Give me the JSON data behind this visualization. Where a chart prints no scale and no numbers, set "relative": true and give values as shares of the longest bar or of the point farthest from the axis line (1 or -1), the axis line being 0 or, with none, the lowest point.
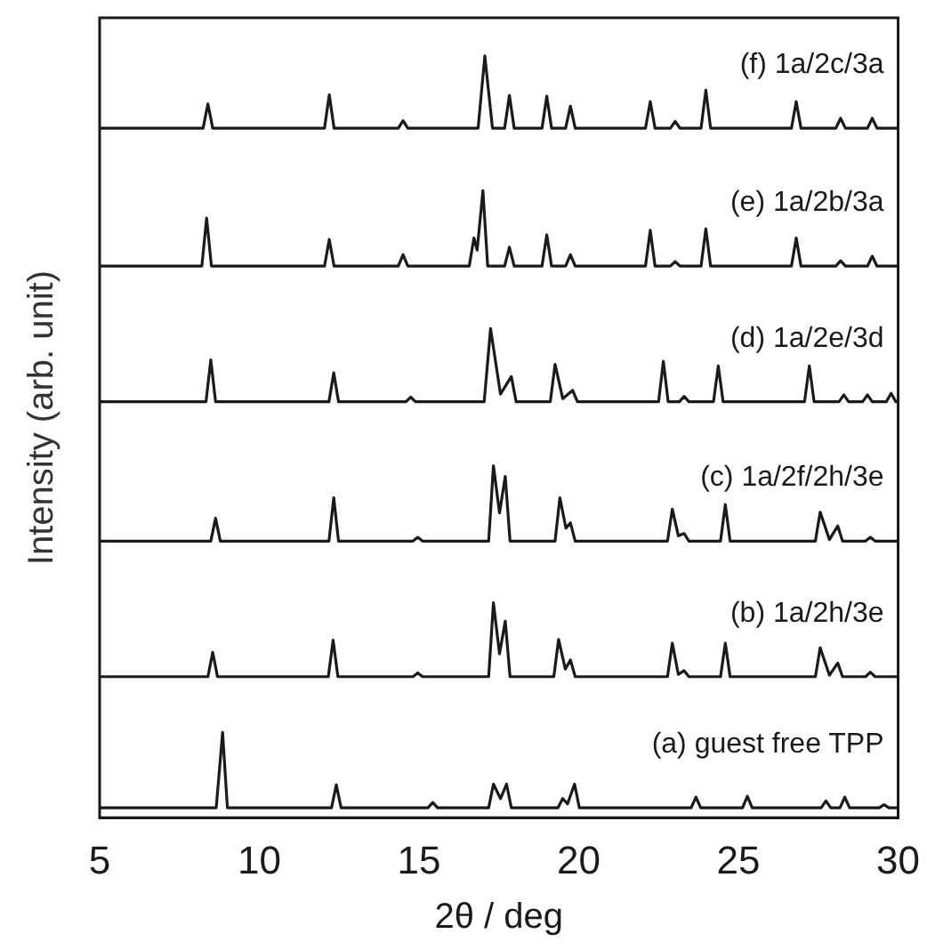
{
  "chart_data": {
    "type": "line",
    "xlabel": "2θ / deg",
    "ylabel": "Intensity (arb. unit)",
    "relative": true,
    "xlim": [
      5,
      30
    ],
    "xticks": [
      5,
      10,
      15,
      20,
      25,
      30
    ],
    "legend": false,
    "marker": "none",
    "line_style": "solid",
    "series": [
      {
        "name": "(f) 1a/2c/3a",
        "color": "#1a1a1a",
        "x": [
          5,
          8.24,
          8.39,
          8.54,
          12.04,
          12.19,
          12.34,
          14.35,
          14.5,
          14.65,
          16.85,
          17.06,
          17.3,
          17.68,
          17.83,
          17.98,
          18.85,
          19.0,
          19.15,
          19.59,
          19.74,
          19.89,
          22.09,
          22.24,
          22.39,
          22.87,
          23.02,
          23.17,
          23.83,
          23.98,
          24.13,
          26.66,
          26.81,
          26.96,
          28.05,
          28.2,
          28.35,
          29.04,
          29.19,
          29.34,
          30
        ],
        "values": [
          0.905,
          0.905,
          0.937,
          0.905,
          0.905,
          0.949,
          0.905,
          0.905,
          0.915,
          0.905,
          0.905,
          1,
          0.905,
          0.905,
          0.948,
          0.905,
          0.905,
          0.947,
          0.905,
          0.905,
          0.934,
          0.905,
          0.905,
          0.94,
          0.905,
          0.905,
          0.914,
          0.905,
          0.905,
          0.955,
          0.905,
          0.905,
          0.94,
          0.905,
          0.905,
          0.918,
          0.905,
          0.905,
          0.918,
          0.905,
          0.905
        ]
      },
      {
        "name": "(e) 1a/2b/3a",
        "color": "#1a1a1a",
        "x": [
          5,
          8.2,
          8.35,
          8.5,
          12.04,
          12.19,
          12.34,
          14.35,
          14.5,
          14.65,
          16.57,
          16.72,
          16.82,
          17.0,
          17.15,
          17.68,
          17.83,
          17.98,
          18.85,
          19.0,
          19.15,
          19.59,
          19.74,
          19.89,
          22.09,
          22.24,
          22.39,
          22.87,
          23.02,
          23.17,
          23.83,
          23.98,
          24.13,
          26.66,
          26.81,
          26.96,
          28.05,
          28.2,
          28.35,
          29.04,
          29.19,
          29.34,
          30
        ],
        "values": [
          0.724,
          0.724,
          0.787,
          0.724,
          0.724,
          0.759,
          0.724,
          0.724,
          0.739,
          0.724,
          0.724,
          0.761,
          0.745,
          0.823,
          0.724,
          0.724,
          0.749,
          0.724,
          0.724,
          0.765,
          0.724,
          0.724,
          0.739,
          0.724,
          0.724,
          0.771,
          0.724,
          0.724,
          0.73,
          0.724,
          0.724,
          0.773,
          0.724,
          0.724,
          0.761,
          0.724,
          0.724,
          0.731,
          0.724,
          0.724,
          0.737,
          0.724,
          0.724
        ]
      },
      {
        "name": "(d) 1a/2e/3d",
        "color": "#1a1a1a",
        "x": [
          5,
          8.33,
          8.48,
          8.63,
          12.18,
          12.33,
          12.48,
          14.59,
          14.74,
          14.89,
          17.04,
          17.24,
          17.55,
          17.89,
          18.04,
          19.11,
          19.26,
          19.5,
          19.81,
          19.96,
          22.5,
          22.65,
          22.8,
          23.15,
          23.3,
          23.45,
          24.22,
          24.37,
          24.52,
          27.07,
          27.22,
          27.37,
          28.15,
          28.3,
          28.45,
          28.89,
          29.04,
          29.19,
          29.63,
          29.78,
          29.93,
          30
        ],
        "values": [
          0.546,
          0.546,
          0.601,
          0.546,
          0.546,
          0.584,
          0.546,
          0.546,
          0.552,
          0.546,
          0.546,
          0.642,
          0.556,
          0.579,
          0.546,
          0.546,
          0.595,
          0.55,
          0.561,
          0.546,
          0.546,
          0.599,
          0.546,
          0.546,
          0.553,
          0.546,
          0.546,
          0.593,
          0.546,
          0.546,
          0.593,
          0.546,
          0.546,
          0.555,
          0.546,
          0.546,
          0.555,
          0.546,
          0.546,
          0.557,
          0.546,
          0.546
        ]
      },
      {
        "name": "(c) 1a/2f/2h/3e",
        "color": "#1a1a1a",
        "x": [
          5,
          8.48,
          8.63,
          8.78,
          12.18,
          12.33,
          12.48,
          14.81,
          14.96,
          15.11,
          17.18,
          17.33,
          17.52,
          17.7,
          17.85,
          19.26,
          19.41,
          19.6,
          19.74,
          19.89,
          22.78,
          22.93,
          23.12,
          23.3,
          23.45,
          24.44,
          24.59,
          24.74,
          27.41,
          27.56,
          27.85,
          28.11,
          28.26,
          28.98,
          29.13,
          29.28,
          30
        ],
        "values": [
          0.363,
          0.363,
          0.393,
          0.363,
          0.363,
          0.42,
          0.363,
          0.363,
          0.368,
          0.363,
          0.363,
          0.462,
          0.4,
          0.448,
          0.363,
          0.363,
          0.42,
          0.38,
          0.387,
          0.363,
          0.363,
          0.405,
          0.37,
          0.373,
          0.363,
          0.363,
          0.411,
          0.363,
          0.363,
          0.401,
          0.365,
          0.383,
          0.363,
          0.363,
          0.368,
          0.363,
          0.363
        ]
      },
      {
        "name": "(b) 1a/2h/3e",
        "color": "#1a1a1a",
        "x": [
          5,
          8.39,
          8.54,
          8.69,
          12.16,
          12.31,
          12.46,
          14.81,
          14.96,
          15.11,
          17.18,
          17.33,
          17.52,
          17.7,
          17.85,
          19.22,
          19.37,
          19.58,
          19.74,
          19.89,
          22.78,
          22.93,
          23.12,
          23.3,
          23.45,
          24.44,
          24.59,
          24.74,
          27.41,
          27.56,
          27.85,
          28.11,
          28.26,
          28.98,
          29.13,
          29.28,
          30
        ],
        "values": [
          0.185,
          0.185,
          0.217,
          0.185,
          0.185,
          0.233,
          0.185,
          0.185,
          0.19,
          0.185,
          0.185,
          0.282,
          0.215,
          0.258,
          0.185,
          0.185,
          0.234,
          0.195,
          0.207,
          0.185,
          0.185,
          0.229,
          0.188,
          0.193,
          0.185,
          0.185,
          0.229,
          0.185,
          0.185,
          0.223,
          0.187,
          0.203,
          0.185,
          0.185,
          0.191,
          0.185,
          0.185
        ]
      },
      {
        "name": "(a) guest free TPP",
        "color": "#1a1a1a",
        "x": [
          5,
          8.65,
          8.85,
          9.0,
          12.26,
          12.41,
          12.56,
          15.28,
          15.43,
          15.58,
          17.18,
          17.33,
          17.55,
          17.74,
          17.89,
          19.35,
          19.5,
          19.65,
          19.87,
          20.02,
          23.52,
          23.67,
          23.82,
          25.13,
          25.28,
          25.43,
          27.59,
          27.74,
          27.89,
          28.18,
          28.33,
          28.48,
          29.41,
          29.56,
          29.71,
          30
        ],
        "values": [
          0.013,
          0.013,
          0.112,
          0.013,
          0.013,
          0.043,
          0.013,
          0.013,
          0.02,
          0.013,
          0.013,
          0.044,
          0.025,
          0.044,
          0.013,
          0.013,
          0.025,
          0.018,
          0.044,
          0.013,
          0.013,
          0.027,
          0.013,
          0.013,
          0.028,
          0.013,
          0.013,
          0.022,
          0.013,
          0.013,
          0.027,
          0.013,
          0.013,
          0.017,
          0.013,
          0.013
        ]
      }
    ]
  }
}
